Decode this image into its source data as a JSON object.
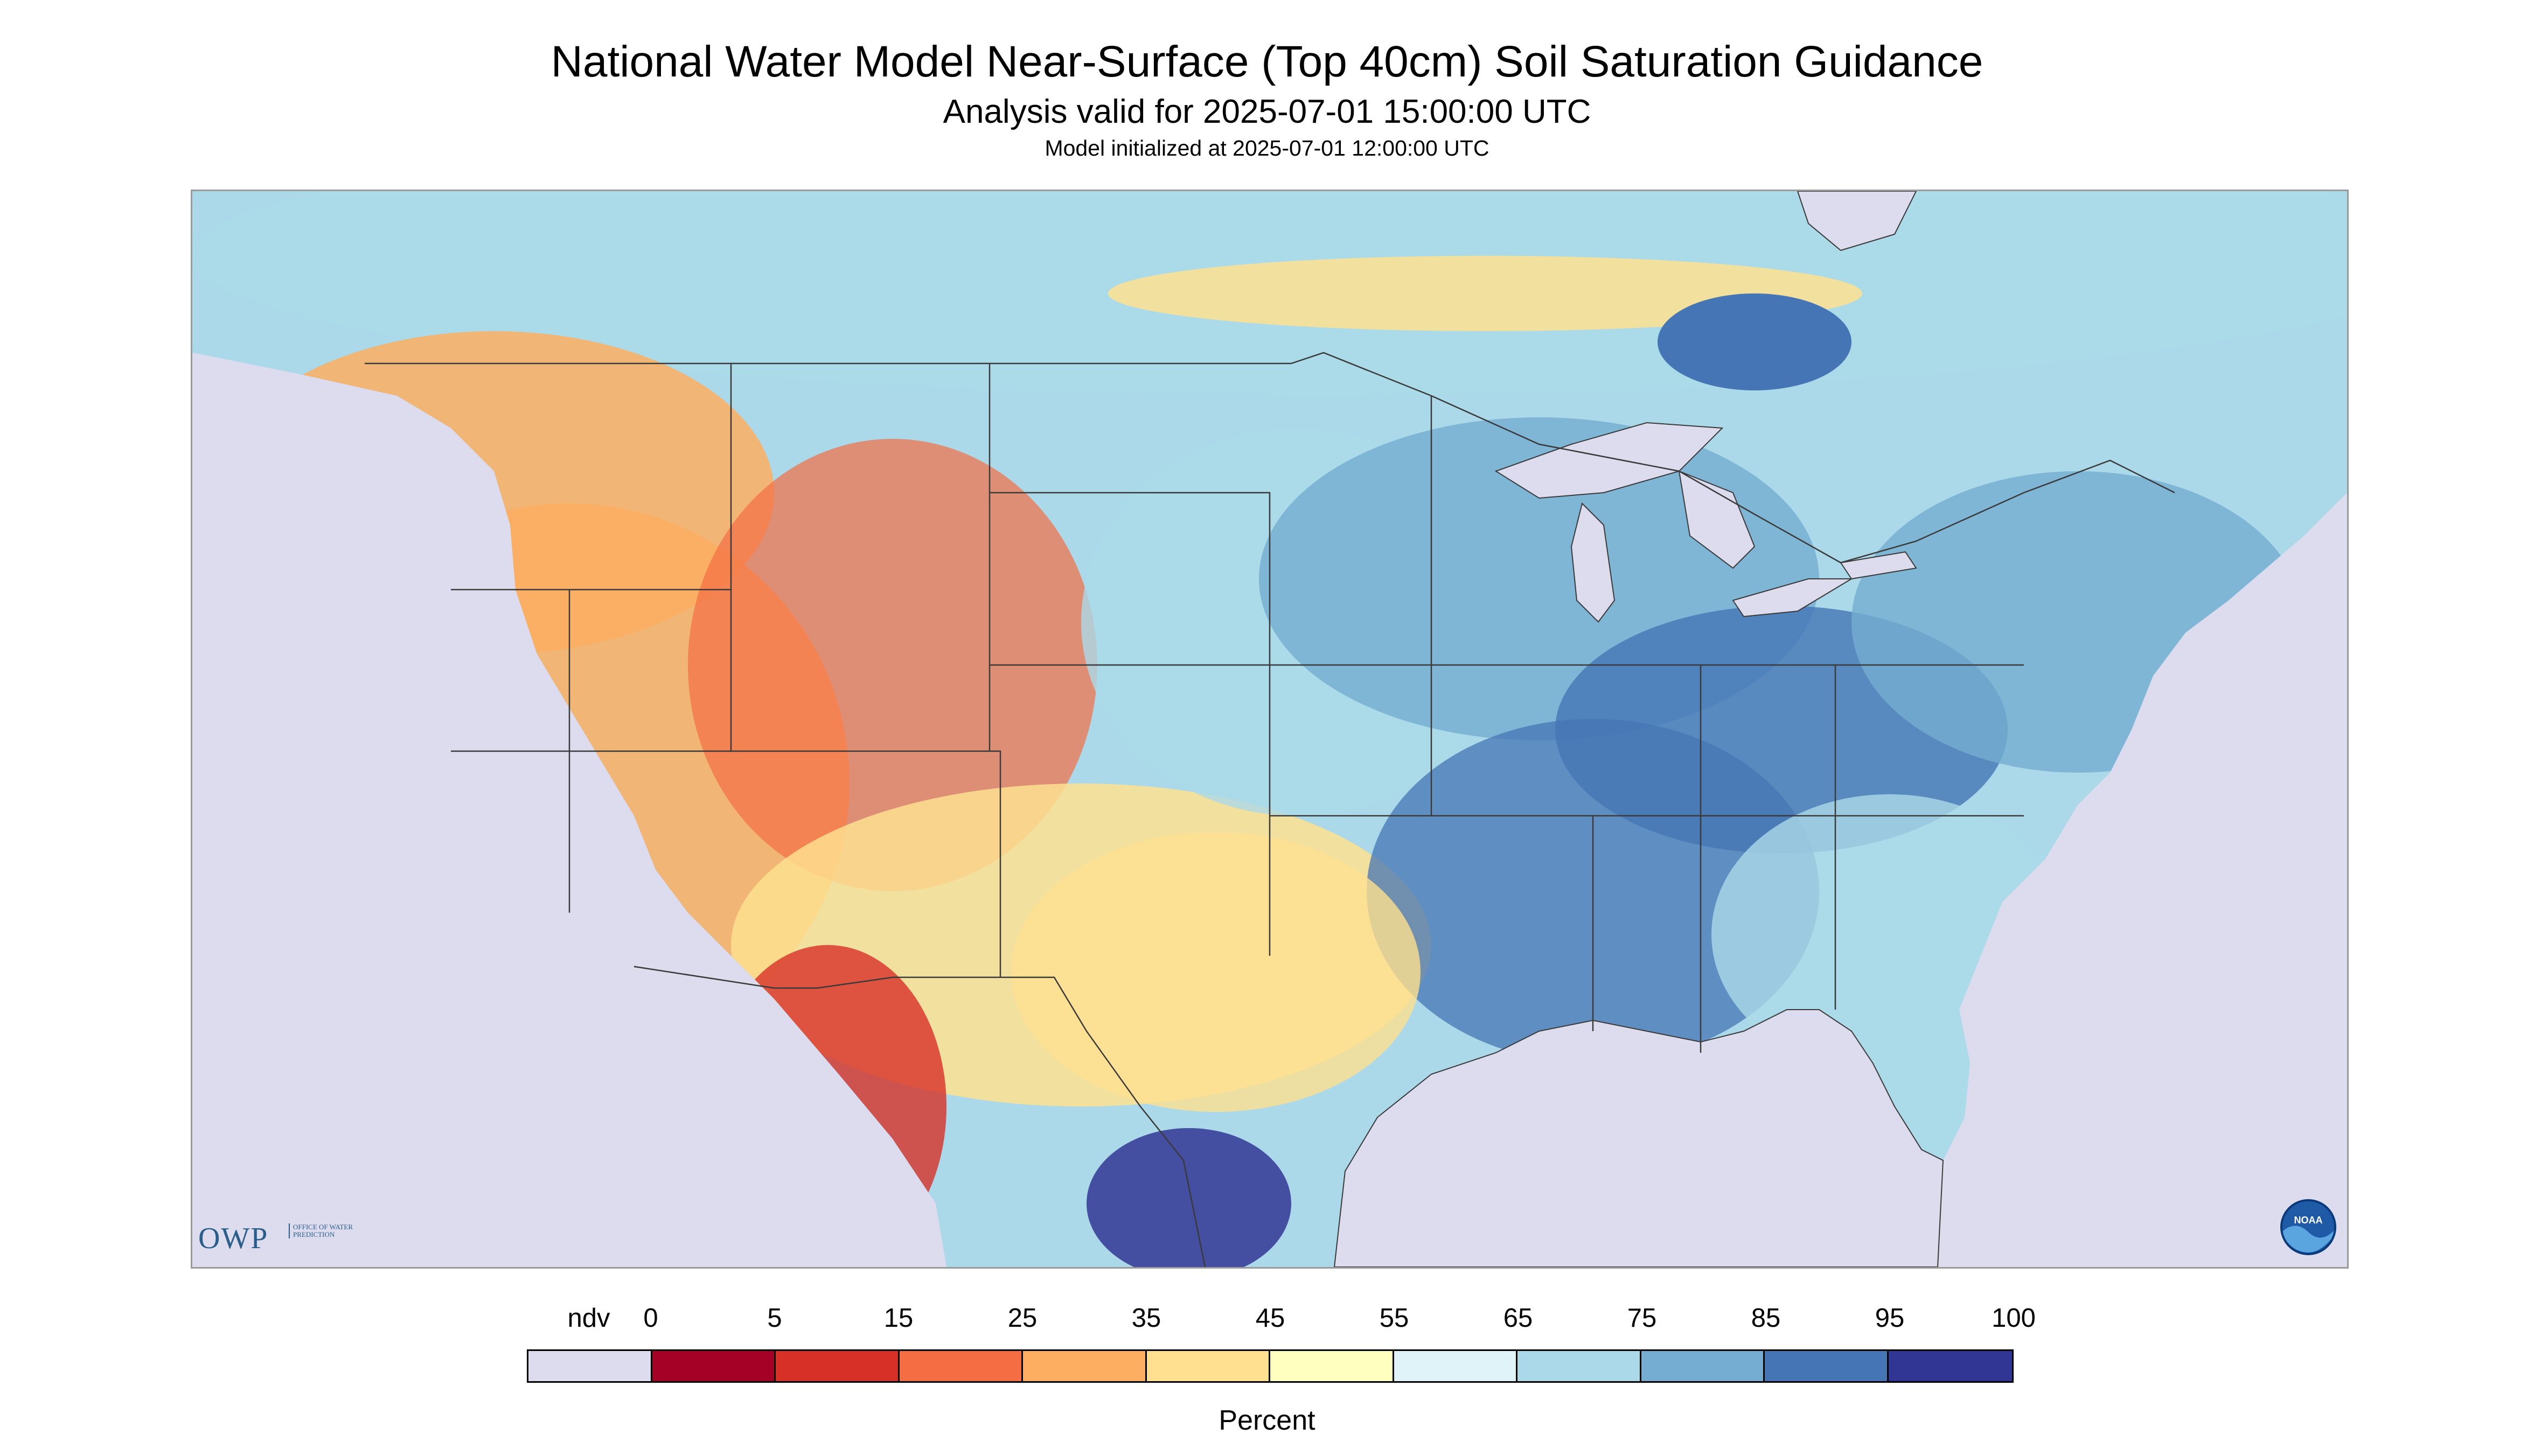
{
  "header": {
    "title": "National Water Model Near-Surface (Top 40cm) Soil Saturation Guidance",
    "subtitle": "Analysis valid for 2025-07-01 15:00:00 UTC",
    "init_text": "Model initialized at 2025-07-01 12:00:00 UTC"
  },
  "logos": {
    "owp": {
      "text": "OWP",
      "subtext": "Office of Water Prediction"
    },
    "noaa": {
      "text": "NOAA"
    }
  },
  "legend": {
    "unit_label": "Percent",
    "bins": [
      {
        "label": "ndv",
        "color": "#dcdcee"
      },
      {
        "label": "0",
        "color": "#a50026"
      },
      {
        "label": "5",
        "color": "#d73027"
      },
      {
        "label": "15",
        "color": "#f46d43"
      },
      {
        "label": "25",
        "color": "#fdae61"
      },
      {
        "label": "35",
        "color": "#fee090"
      },
      {
        "label": "45",
        "color": "#ffffbf"
      },
      {
        "label": "55",
        "color": "#e0f3f8"
      },
      {
        "label": "65",
        "color": "#abd9e9"
      },
      {
        "label": "75",
        "color": "#74add1"
      },
      {
        "label": "85",
        "color": "#4575b4"
      },
      {
        "label": "95",
        "color": "#313695"
      }
    ],
    "end_label": "100"
  },
  "map": {
    "water_color": "#dcdcee",
    "land_base_color": "#abd9e9",
    "boundary_color": "#3a3a3a",
    "regions": [
      {
        "name": "canada-north",
        "color": "#abd9e9"
      },
      {
        "name": "canadian-prairies-dry-band",
        "color": "#fee090"
      },
      {
        "name": "hudson-wet-patch",
        "color": "#4575b4"
      },
      {
        "name": "pacific-northwest",
        "color": "#fdae61"
      },
      {
        "name": "great-basin-west",
        "color": "#fdae61"
      },
      {
        "name": "rocky-mountains",
        "color": "#f46d43"
      },
      {
        "name": "southwest-desert",
        "color": "#fee090"
      },
      {
        "name": "northern-mexico",
        "color": "#d73027"
      },
      {
        "name": "baja-california",
        "color": "#fdae61"
      },
      {
        "name": "northern-plains",
        "color": "#abd9e9"
      },
      {
        "name": "upper-midwest",
        "color": "#74add1"
      },
      {
        "name": "ohio-valley",
        "color": "#4575b4"
      },
      {
        "name": "mid-south",
        "color": "#4575b4"
      },
      {
        "name": "southeast",
        "color": "#abd9e9"
      },
      {
        "name": "texas",
        "color": "#fee090"
      },
      {
        "name": "south-texas-coast",
        "color": "#313695"
      },
      {
        "name": "northeast",
        "color": "#74add1"
      },
      {
        "name": "florida",
        "color": "#abd9e9"
      }
    ]
  }
}
